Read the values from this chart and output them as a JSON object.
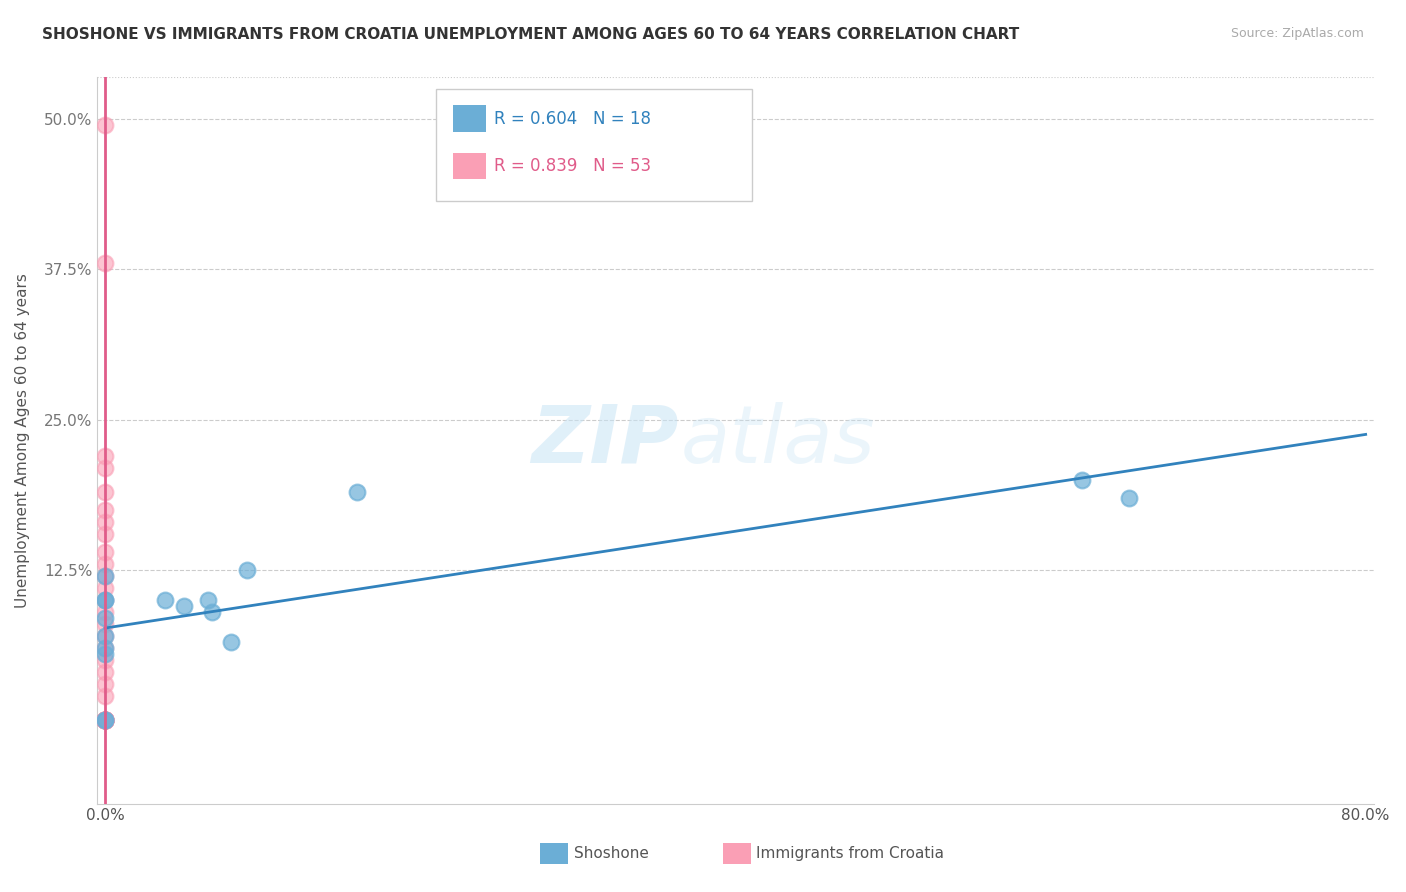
{
  "title": "SHOSHONE VS IMMIGRANTS FROM CROATIA UNEMPLOYMENT AMONG AGES 60 TO 64 YEARS CORRELATION CHART",
  "source": "Source: ZipAtlas.com",
  "ylabel": "Unemployment Among Ages 60 to 64 years",
  "xlim": [
    -0.005,
    0.805
  ],
  "ylim": [
    -0.07,
    0.535
  ],
  "xticks": [
    0.0,
    0.1,
    0.2,
    0.3,
    0.4,
    0.5,
    0.6,
    0.7,
    0.8
  ],
  "xticklabels": [
    "0.0%",
    "",
    "",
    "",
    "",
    "",
    "",
    "",
    "80.0%"
  ],
  "yticks": [
    0.0,
    0.125,
    0.25,
    0.375,
    0.5
  ],
  "yticklabels": [
    "",
    "12.5%",
    "25.0%",
    "37.5%",
    "50.0%"
  ],
  "blue_R": 0.604,
  "blue_N": 18,
  "pink_R": 0.839,
  "pink_N": 53,
  "blue_color": "#6baed6",
  "pink_color": "#fa9fb5",
  "blue_line_color": "#3182bd",
  "pink_line_color": "#e05c8a",
  "watermark_zip": "ZIP",
  "watermark_atlas": "atlas",
  "legend_label_blue": "Shoshone",
  "legend_label_pink": "Immigrants from Croatia",
  "shoshone_x": [
    0.0,
    0.0,
    0.0,
    0.0,
    0.0,
    0.0,
    0.0,
    0.0,
    0.0,
    0.038,
    0.05,
    0.065,
    0.068,
    0.08,
    0.09,
    0.16,
    0.62,
    0.65
  ],
  "shoshone_y": [
    0.0,
    0.0,
    0.06,
    0.085,
    0.1,
    0.1,
    0.12,
    0.07,
    0.055,
    0.1,
    0.095,
    0.1,
    0.09,
    0.065,
    0.125,
    0.19,
    0.2,
    0.185
  ],
  "croatia_x": [
    0.0,
    0.0,
    0.0,
    0.0,
    0.0,
    0.0,
    0.0,
    0.0,
    0.0,
    0.0,
    0.0,
    0.0,
    0.0,
    0.0,
    0.0,
    0.0,
    0.0,
    0.0,
    0.0,
    0.0,
    0.0,
    0.0,
    0.0,
    0.0,
    0.0,
    0.0,
    0.0,
    0.0,
    0.0,
    0.0,
    0.0,
    0.0,
    0.0,
    0.0,
    0.0,
    0.0,
    0.0,
    0.0,
    0.0,
    0.0,
    0.0,
    0.0,
    0.0,
    0.0,
    0.0,
    0.0,
    0.0,
    0.0,
    0.0,
    0.0,
    0.0,
    0.0,
    0.0
  ],
  "croatia_y": [
    0.0,
    0.0,
    0.0,
    0.0,
    0.0,
    0.0,
    0.0,
    0.0,
    0.0,
    0.0,
    0.0,
    0.0,
    0.0,
    0.0,
    0.0,
    0.0,
    0.0,
    0.0,
    0.0,
    0.0,
    0.0,
    0.0,
    0.0,
    0.0,
    0.0,
    0.0,
    0.0,
    0.0,
    0.0,
    0.0,
    0.0,
    0.0,
    0.02,
    0.03,
    0.04,
    0.05,
    0.06,
    0.07,
    0.08,
    0.09,
    0.1,
    0.11,
    0.12,
    0.13,
    0.14,
    0.155,
    0.165,
    0.175,
    0.19,
    0.21,
    0.22,
    0.38,
    0.495
  ],
  "blue_line_x": [
    0.0,
    0.8
  ],
  "blue_line_y": [
    0.075,
    0.22
  ],
  "pink_line_x": [
    0.0,
    0.0
  ],
  "pink_line_y": [
    -0.07,
    0.535
  ]
}
